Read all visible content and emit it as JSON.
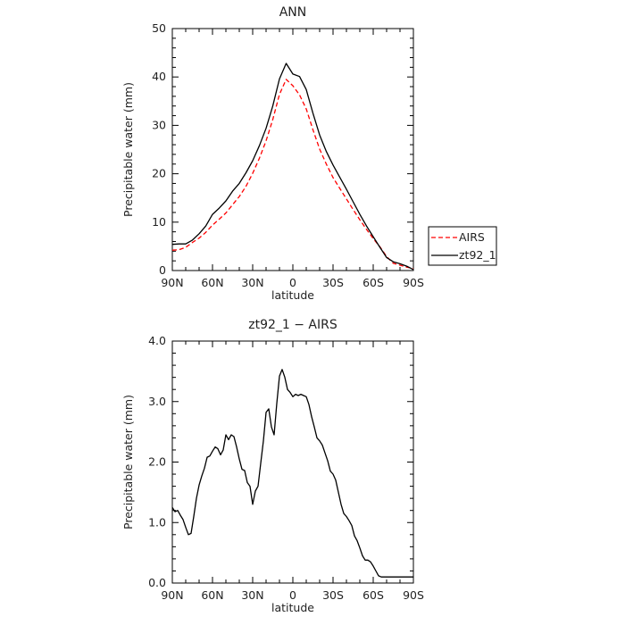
{
  "chart_data": [
    {
      "type": "line",
      "title": "ANN",
      "xlabel": "latitude",
      "ylabel": "Precipitable water  (mm)",
      "xlim": [
        90,
        -90
      ],
      "ylim": [
        0,
        50
      ],
      "x_ticks": [
        "90N",
        "60N",
        "30N",
        "0",
        "30S",
        "60S",
        "90S"
      ],
      "y_ticks": [
        "0",
        "10",
        "20",
        "30",
        "40",
        "50"
      ],
      "legend": "right",
      "series": [
        {
          "name": "AIRS",
          "color": "#ff0000",
          "dash": true,
          "x": [
            90,
            85,
            80,
            75,
            70,
            65,
            60,
            55,
            50,
            45,
            40,
            35,
            30,
            25,
            20,
            15,
            10,
            5,
            0,
            -5,
            -10,
            -15,
            -20,
            -25,
            -30,
            -35,
            -40,
            -45,
            -50,
            -55,
            -60,
            -65,
            -70,
            -75,
            -80,
            -85,
            -90
          ],
          "y": [
            4.2,
            4.3,
            4.8,
            5.8,
            6.7,
            7.9,
            9.4,
            10.6,
            11.9,
            13.6,
            15.3,
            17.4,
            20.1,
            23.2,
            26.8,
            31.2,
            36.4,
            39.5,
            38.2,
            36.3,
            33.4,
            29.1,
            25.1,
            22.0,
            19.2,
            17.0,
            14.8,
            12.6,
            10.5,
            8.5,
            6.6,
            4.9,
            2.9,
            1.5,
            1.1,
            0.7,
            0.4
          ]
        },
        {
          "name": "zt92_1",
          "color": "#000000",
          "dash": false,
          "x": [
            90,
            85,
            80,
            75,
            70,
            65,
            60,
            55,
            50,
            45,
            40,
            35,
            30,
            25,
            20,
            15,
            10,
            5,
            0,
            -5,
            -10,
            -15,
            -20,
            -25,
            -30,
            -35,
            -40,
            -45,
            -50,
            -55,
            -60,
            -65,
            -70,
            -75,
            -80,
            -85,
            -90
          ],
          "y": [
            5.4,
            5.5,
            5.5,
            6.3,
            7.6,
            9.2,
            11.6,
            12.9,
            14.4,
            16.4,
            18.0,
            20.2,
            22.7,
            25.8,
            29.4,
            34.0,
            39.6,
            42.8,
            40.6,
            40.1,
            37.4,
            32.5,
            28.0,
            24.6,
            21.8,
            19.3,
            16.8,
            14.2,
            11.6,
            9.2,
            7.0,
            4.8,
            2.7,
            1.8,
            1.4,
            0.9,
            0.2
          ]
        }
      ]
    },
    {
      "type": "line",
      "title": "zt92_1 − AIRS",
      "xlabel": "latitude",
      "ylabel": "Precipitable water  (mm)",
      "xlim": [
        90,
        -90
      ],
      "ylim": [
        0,
        4
      ],
      "x_ticks": [
        "90N",
        "60N",
        "30N",
        "0",
        "30S",
        "60S",
        "90S"
      ],
      "y_ticks": [
        "0.0",
        "1.0",
        "2.0",
        "3.0",
        "4.0"
      ],
      "series": [
        {
          "color": "#000000",
          "x": [
            90,
            88,
            86,
            84,
            82,
            80,
            78,
            76,
            74,
            72,
            70,
            68,
            66,
            64,
            62,
            60,
            58,
            56,
            54,
            52,
            50,
            48,
            46,
            44,
            42,
            40,
            38,
            36,
            34,
            32,
            30,
            28,
            26,
            24,
            22,
            20,
            18,
            16,
            14,
            12,
            10,
            8,
            6,
            4,
            2,
            0,
            -2,
            -4,
            -6,
            -8,
            -10,
            -12,
            -14,
            -16,
            -18,
            -20,
            -22,
            -24,
            -26,
            -28,
            -30,
            -32,
            -34,
            -36,
            -38,
            -40,
            -42,
            -44,
            -46,
            -48,
            -50,
            -52,
            -54,
            -56,
            -58,
            -60,
            -62,
            -64,
            -66,
            -68,
            -70,
            -72,
            -74,
            -76,
            -78,
            -80,
            -82,
            -84,
            -86,
            -88,
            -90
          ],
          "y": [
            1.25,
            1.18,
            1.2,
            1.12,
            1.05,
            0.92,
            0.8,
            0.82,
            1.1,
            1.4,
            1.62,
            1.77,
            1.9,
            2.08,
            2.1,
            2.18,
            2.25,
            2.22,
            2.12,
            2.2,
            2.45,
            2.37,
            2.45,
            2.42,
            2.25,
            2.05,
            1.88,
            1.86,
            1.66,
            1.6,
            1.3,
            1.52,
            1.6,
            1.98,
            2.35,
            2.82,
            2.88,
            2.58,
            2.45,
            2.97,
            3.42,
            3.53,
            3.4,
            3.2,
            3.15,
            3.08,
            3.12,
            3.1,
            3.12,
            3.1,
            3.08,
            2.95,
            2.75,
            2.58,
            2.4,
            2.35,
            2.28,
            2.15,
            2.02,
            1.85,
            1.8,
            1.7,
            1.5,
            1.3,
            1.15,
            1.1,
            1.03,
            0.95,
            0.78,
            0.7,
            0.58,
            0.45,
            0.38,
            0.38,
            0.35,
            0.28,
            0.2,
            0.12,
            0.1,
            0.1,
            0.1,
            0.1,
            0.1,
            0.1,
            0.1,
            0.1,
            0.1,
            0.1,
            0.1,
            0.1,
            0.1
          ]
        }
      ]
    }
  ]
}
